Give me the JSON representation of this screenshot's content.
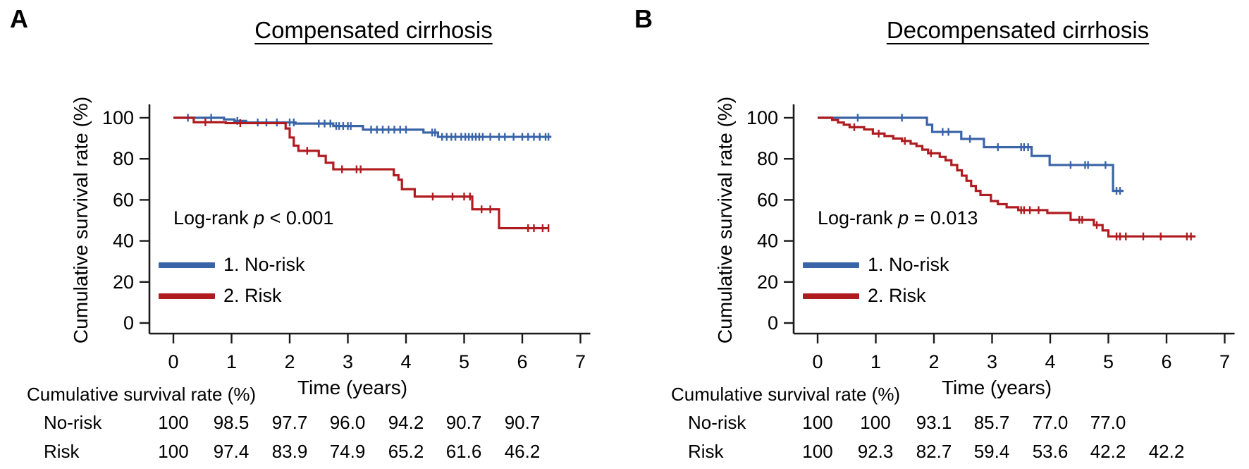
{
  "figure_type": "kaplan-meier-survival-figure",
  "colors": {
    "no_risk": "#3a64a8",
    "risk": "#b01b20",
    "axis": "#1a1a1a",
    "text": "#000000",
    "background": "#ffffff"
  },
  "panels": [
    {
      "label": "A",
      "title": "Compensated cirrhosis",
      "log_rank": {
        "before": "Log-rank ",
        "p": "p",
        "after": " < 0.001"
      },
      "y_axis": {
        "label": "Cumulative survival rate (%)",
        "ticks": [
          100,
          80,
          60,
          40,
          20,
          0
        ]
      },
      "x_axis": {
        "label": "Time (years)",
        "ticks": [
          0,
          1,
          2,
          3,
          4,
          5,
          6,
          7
        ]
      },
      "legend": [
        {
          "label": "1. No-risk",
          "color_key": "no_risk"
        },
        {
          "label": "2. Risk",
          "color_key": "risk"
        }
      ],
      "chart_data": {
        "type": "line",
        "subtype": "kaplan-meier-step",
        "title": "Compensated cirrhosis",
        "xlabel": "Time (years)",
        "ylabel": "Cumulative survival rate (%)",
        "xlim": [
          0,
          7.6
        ],
        "ylim": [
          0,
          105
        ],
        "grid": false,
        "legend_position": "inside-lower-left",
        "series": [
          {
            "name": "1. No-risk",
            "color_key": "no_risk",
            "steps": [
              [
                0,
                100
              ],
              [
                0.87,
                99.2
              ],
              [
                1.05,
                98.5
              ],
              [
                1.25,
                97.7
              ],
              [
                2.1,
                97.2
              ],
              [
                2.75,
                96.0
              ],
              [
                3.26,
                94.2
              ],
              [
                4.3,
                92.8
              ],
              [
                4.55,
                90.7
              ]
            ],
            "end": 6.5,
            "censors": [
              0.25,
              0.65,
              1.1,
              1.45,
              1.6,
              1.78,
              2.0,
              2.07,
              2.5,
              2.6,
              2.7,
              2.8,
              2.85,
              2.92,
              3.0,
              3.05,
              3.4,
              3.5,
              3.6,
              3.7,
              3.8,
              3.9,
              4.0,
              4.45,
              4.5,
              4.62,
              4.7,
              4.78,
              4.85,
              4.95,
              5.02,
              5.08,
              5.14,
              5.2,
              5.26,
              5.32,
              5.45,
              5.6,
              5.7,
              5.85,
              6.0,
              6.1,
              6.2,
              6.3,
              6.4,
              6.45
            ],
            "yearly_values": [
              100,
              98.5,
              97.7,
              96.0,
              94.2,
              90.7,
              90.7
            ]
          },
          {
            "name": "2. Risk",
            "color_key": "risk",
            "steps": [
              [
                0,
                100
              ],
              [
                0.35,
                97.8
              ],
              [
                0.9,
                97.4
              ],
              [
                1.93,
                94.8
              ],
              [
                2.0,
                90.4
              ],
              [
                2.07,
                86.4
              ],
              [
                2.15,
                83.9
              ],
              [
                2.5,
                81.4
              ],
              [
                2.62,
                78.1
              ],
              [
                2.75,
                74.9
              ],
              [
                3.79,
                72.0
              ],
              [
                3.87,
                69.8
              ],
              [
                3.93,
                65.2
              ],
              [
                4.15,
                61.6
              ],
              [
                5.14,
                55.4
              ],
              [
                5.6,
                46.2
              ]
            ],
            "end": 6.45,
            "censors": [
              0.55,
              1.15,
              2.3,
              2.9,
              3.15,
              3.22,
              4.46,
              4.8,
              5.0,
              5.1,
              5.3,
              5.45,
              6.1,
              6.2,
              6.35,
              6.45
            ],
            "yearly_values": [
              100,
              97.4,
              83.9,
              74.9,
              65.2,
              61.6,
              46.2
            ]
          }
        ]
      },
      "table": {
        "header": "Cumulative survival rate (%)",
        "rows": [
          {
            "label": "No-risk",
            "values": [
              "100",
              "98.5",
              "97.7",
              "96.0",
              "94.2",
              "90.7",
              "90.7"
            ]
          },
          {
            "label": "Risk",
            "values": [
              "100",
              "97.4",
              "83.9",
              "74.9",
              "65.2",
              "61.6",
              "46.2"
            ]
          }
        ]
      }
    },
    {
      "label": "B",
      "title": "Decompensated cirrhosis",
      "log_rank": {
        "before": "Log-rank ",
        "p": "p",
        "after": " = 0.013"
      },
      "y_axis": {
        "label": "Cumulative survival rate (%)",
        "ticks": [
          100,
          80,
          60,
          40,
          20,
          0
        ]
      },
      "x_axis": {
        "label": "Time (years)",
        "ticks": [
          0,
          1,
          2,
          3,
          4,
          5,
          6,
          7
        ]
      },
      "legend": [
        {
          "label": "1. No-risk",
          "color_key": "no_risk"
        },
        {
          "label": "2. Risk",
          "color_key": "risk"
        }
      ],
      "chart_data": {
        "type": "line",
        "subtype": "kaplan-meier-step",
        "title": "Decompensated cirrhosis",
        "xlabel": "Time (years)",
        "ylabel": "Cumulative survival rate (%)",
        "xlim": [
          0,
          7.6
        ],
        "ylim": [
          0,
          105
        ],
        "grid": false,
        "legend_position": "inside-lower-left",
        "series": [
          {
            "name": "1. No-risk",
            "color_key": "no_risk",
            "steps": [
              [
                0,
                100
              ],
              [
                1.88,
                96.6
              ],
              [
                1.97,
                93.1
              ],
              [
                2.47,
                89.7
              ],
              [
                2.86,
                85.7
              ],
              [
                3.68,
                81.4
              ],
              [
                3.99,
                77.0
              ],
              [
                5.08,
                64.4
              ]
            ],
            "end": 5.26,
            "censors": [
              0.69,
              1.45,
              2.15,
              2.25,
              2.62,
              3.1,
              3.5,
              3.55,
              3.62,
              4.35,
              4.6,
              4.65,
              4.95,
              5.14,
              5.2
            ],
            "yearly_values": [
              100,
              100,
              93.1,
              85.7,
              77.0,
              77.0
            ]
          },
          {
            "name": "2. Risk",
            "color_key": "risk",
            "steps": [
              [
                0,
                100
              ],
              [
                0.25,
                98.9
              ],
              [
                0.35,
                97.7
              ],
              [
                0.45,
                96.6
              ],
              [
                0.55,
                95.4
              ],
              [
                0.8,
                94.3
              ],
              [
                0.95,
                92.3
              ],
              [
                1.15,
                91.1
              ],
              [
                1.3,
                89.9
              ],
              [
                1.45,
                88.7
              ],
              [
                1.6,
                87.4
              ],
              [
                1.7,
                86.2
              ],
              [
                1.8,
                84.5
              ],
              [
                1.9,
                82.7
              ],
              [
                2.1,
                81.0
              ],
              [
                2.2,
                79.3
              ],
              [
                2.3,
                77.0
              ],
              [
                2.4,
                74.4
              ],
              [
                2.48,
                71.8
              ],
              [
                2.56,
                69.3
              ],
              [
                2.64,
                66.8
              ],
              [
                2.72,
                64.4
              ],
              [
                2.8,
                62.4
              ],
              [
                2.98,
                59.4
              ],
              [
                3.1,
                57.9
              ],
              [
                3.25,
                56.4
              ],
              [
                3.45,
                55.0
              ],
              [
                3.95,
                53.6
              ],
              [
                4.35,
                50.3
              ],
              [
                4.75,
                47.7
              ],
              [
                4.9,
                45.1
              ],
              [
                5.0,
                42.2
              ]
            ],
            "end": 6.5,
            "censors": [
              0.63,
              1.05,
              1.5,
              1.95,
              3.5,
              3.55,
              3.65,
              3.8,
              4.5,
              4.55,
              4.8,
              5.14,
              5.2,
              5.3,
              5.6,
              5.9,
              6.35,
              6.42
            ],
            "yearly_values": [
              100,
              92.3,
              82.7,
              59.4,
              53.6,
              42.2,
              42.2
            ]
          }
        ]
      },
      "table": {
        "header": "Cumulative survival rate (%)",
        "rows": [
          {
            "label": "No-risk",
            "values": [
              "100",
              "100",
              "93.1",
              "85.7",
              "77.0",
              "77.0"
            ]
          },
          {
            "label": "Risk",
            "values": [
              "100",
              "92.3",
              "82.7",
              "59.4",
              "53.6",
              "42.2",
              "42.2"
            ]
          }
        ]
      }
    }
  ]
}
